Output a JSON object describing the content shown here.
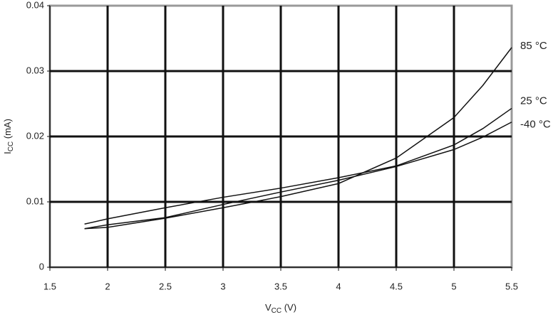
{
  "chart_data": {
    "type": "line",
    "xlabel": [
      "V",
      "CC",
      " (V)"
    ],
    "ylabel": [
      "I",
      "CC",
      " (mA)"
    ],
    "x": [
      1.8,
      2.0,
      2.5,
      3.0,
      3.5,
      4.0,
      4.5,
      5.0,
      5.25,
      5.5
    ],
    "series": [
      {
        "name": "85 °C",
        "color": "#111111",
        "values": [
          0.0059,
          0.0061,
          0.0075,
          0.0091,
          0.0108,
          0.0128,
          0.0167,
          0.0229,
          0.0278,
          0.0336
        ]
      },
      {
        "name": "25 °C",
        "color": "#111111",
        "values": [
          0.0066,
          0.0074,
          0.0091,
          0.0107,
          0.0121,
          0.0137,
          0.0155,
          0.0187,
          0.0212,
          0.0243
        ]
      },
      {
        "name": "-40 °C",
        "color": "#111111",
        "values": [
          0.0059,
          0.0065,
          0.0076,
          0.0096,
          0.0115,
          0.0133,
          0.0154,
          0.018,
          0.0199,
          0.0222
        ]
      }
    ],
    "xlim": [
      1.5,
      5.5
    ],
    "xticks": [
      1.5,
      2,
      2.5,
      3,
      3.5,
      4,
      4.5,
      5,
      5.5
    ],
    "ylim": [
      0,
      0.04
    ],
    "yticks": [
      0,
      0.01,
      0.02,
      0.03,
      0.04
    ],
    "grid": true
  }
}
